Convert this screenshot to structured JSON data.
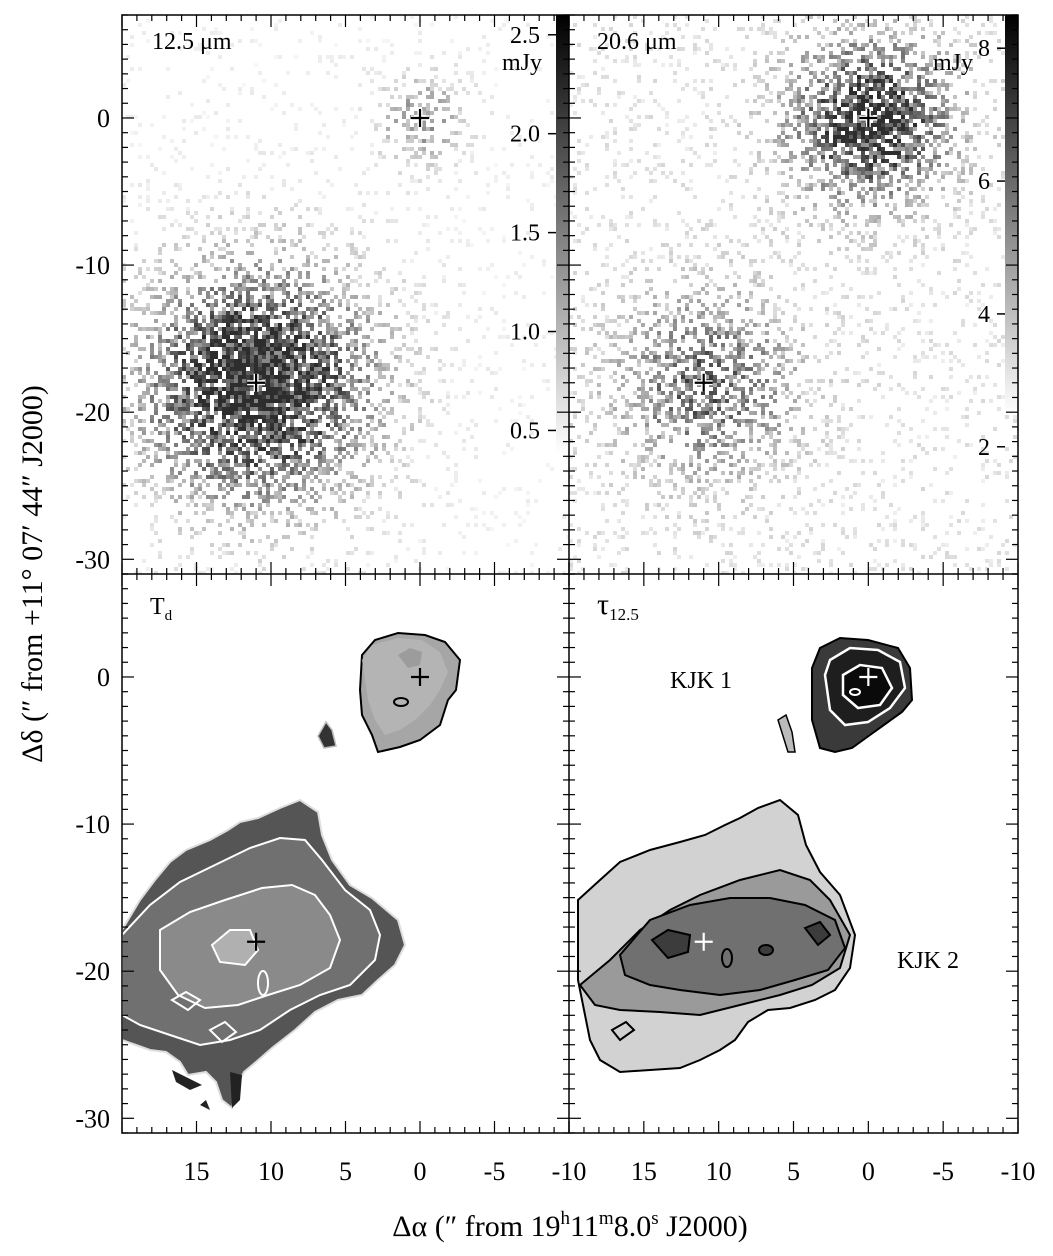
{
  "chart_data": {
    "type": "heatmap",
    "xlabel_parts": [
      "Δα (″  from  19",
      "h",
      "11",
      "m",
      "8.0",
      "s",
      " J2000)"
    ],
    "ylabel_parts": [
      "Δδ (″ from +11° 07′ 44″ J2000)"
    ],
    "x_range": [
      20,
      -10
    ],
    "y_range": [
      -31,
      7
    ],
    "x_ticks": [
      15,
      10,
      5,
      0,
      -5,
      -10
    ],
    "y_ticks": [
      0,
      -10,
      -20,
      -30
    ],
    "sources": [
      {
        "name": "KJK 1",
        "x": 0,
        "y": 0
      },
      {
        "name": "KJK 2",
        "x": 11,
        "y": -18
      }
    ],
    "panels": [
      {
        "id": "p12",
        "label": "12.5 μm",
        "kind": "image",
        "colorbar": {
          "unit": "mJy",
          "ticks": [
            "2.5",
            "2.0",
            "1.5",
            "1.0",
            "0.5"
          ],
          "tick_values": [
            2.5,
            2.0,
            1.5,
            1.0,
            0.5
          ],
          "range": [
            0.3,
            2.6
          ]
        }
      },
      {
        "id": "p20",
        "label": "20.6 μm",
        "kind": "image",
        "colorbar": {
          "unit": "mJy",
          "ticks": [
            "8",
            "6",
            "4",
            "2"
          ],
          "tick_values": [
            8,
            6,
            4,
            2
          ],
          "range": [
            1.5,
            8.5
          ]
        }
      },
      {
        "id": "ptd",
        "label_main": "T",
        "label_sub": "d",
        "kind": "map"
      },
      {
        "id": "ptau",
        "label_main": "τ",
        "label_sub": "12.5",
        "kind": "map",
        "annotations": [
          "KJK 1",
          "KJK 2"
        ]
      }
    ]
  }
}
